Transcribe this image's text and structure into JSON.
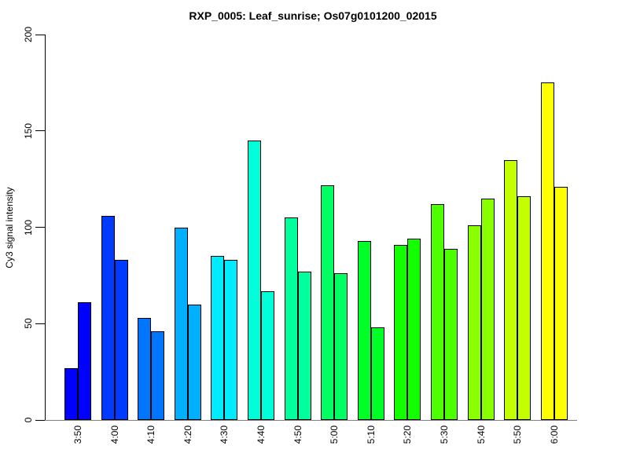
{
  "chart_data": {
    "type": "bar",
    "title": "RXP_0005: Leaf_sunrise; Os07g0101200_02015",
    "xlabel": "",
    "ylabel": "Cy3 signal intensity",
    "ylim": [
      0,
      200
    ],
    "yticks": [
      0,
      50,
      100,
      150,
      200
    ],
    "grid": false,
    "legend": "none",
    "bars_per_category": 2,
    "categories": [
      "3:50",
      "4:00",
      "4:10",
      "4:20",
      "4:30",
      "4:40",
      "4:50",
      "5:00",
      "5:10",
      "5:20",
      "5:30",
      "5:40",
      "5:50",
      "6:00"
    ],
    "series": [
      {
        "values": [
          27,
          106,
          53,
          100,
          85,
          145,
          105,
          122,
          93,
          91,
          112,
          101,
          135,
          175
        ]
      },
      {
        "values": [
          61,
          83,
          46,
          60,
          83,
          67,
          77,
          76,
          48,
          94,
          89,
          115,
          116,
          121
        ]
      }
    ],
    "category_colors": [
      "#0000FF",
      "#003AFF",
      "#0076FF",
      "#00B0FF",
      "#00EBFF",
      "#00FFD8",
      "#00FF9D",
      "#00FF62",
      "#00FF27",
      "#13FF00",
      "#4EFF00",
      "#89FF00",
      "#C4FF00",
      "#FFFF00"
    ],
    "bar_border_color": "#000000",
    "axis_color": "#000000",
    "baseline_color": "#808080",
    "background": "#FFFFFF",
    "text_color": "#000000"
  }
}
